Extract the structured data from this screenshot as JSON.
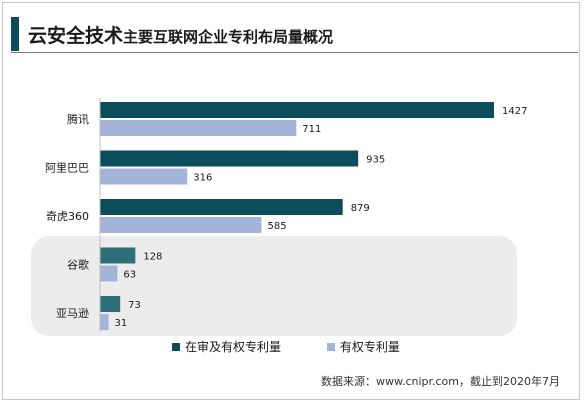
{
  "title": {
    "main": "云安全技术",
    "sub": "主要互联网企业专利布局量概况"
  },
  "colors": {
    "accent": "#0b4d5a",
    "series1": "#0b4d5a",
    "series1_highlight": "#2e6e76",
    "series2": "#a4b4d9",
    "highlight_bg": "#ececec"
  },
  "chart_data": {
    "type": "bar",
    "orientation": "horizontal",
    "categories": [
      "腾讯",
      "阿里巴巴",
      "奇虎360",
      "谷歌",
      "亚马逊"
    ],
    "series": [
      {
        "name": "在审及有权专利量",
        "values": [
          1427,
          935,
          879,
          128,
          73
        ]
      },
      {
        "name": "有权专利量",
        "values": [
          711,
          316,
          585,
          63,
          31
        ]
      }
    ],
    "xlim": [
      0,
      1427
    ],
    "grid": false,
    "legend_position": "bottom",
    "highlighted_categories": [
      "谷歌",
      "亚马逊"
    ]
  },
  "source": "数据来源：www.cnipr.com，截止到2020年7月"
}
